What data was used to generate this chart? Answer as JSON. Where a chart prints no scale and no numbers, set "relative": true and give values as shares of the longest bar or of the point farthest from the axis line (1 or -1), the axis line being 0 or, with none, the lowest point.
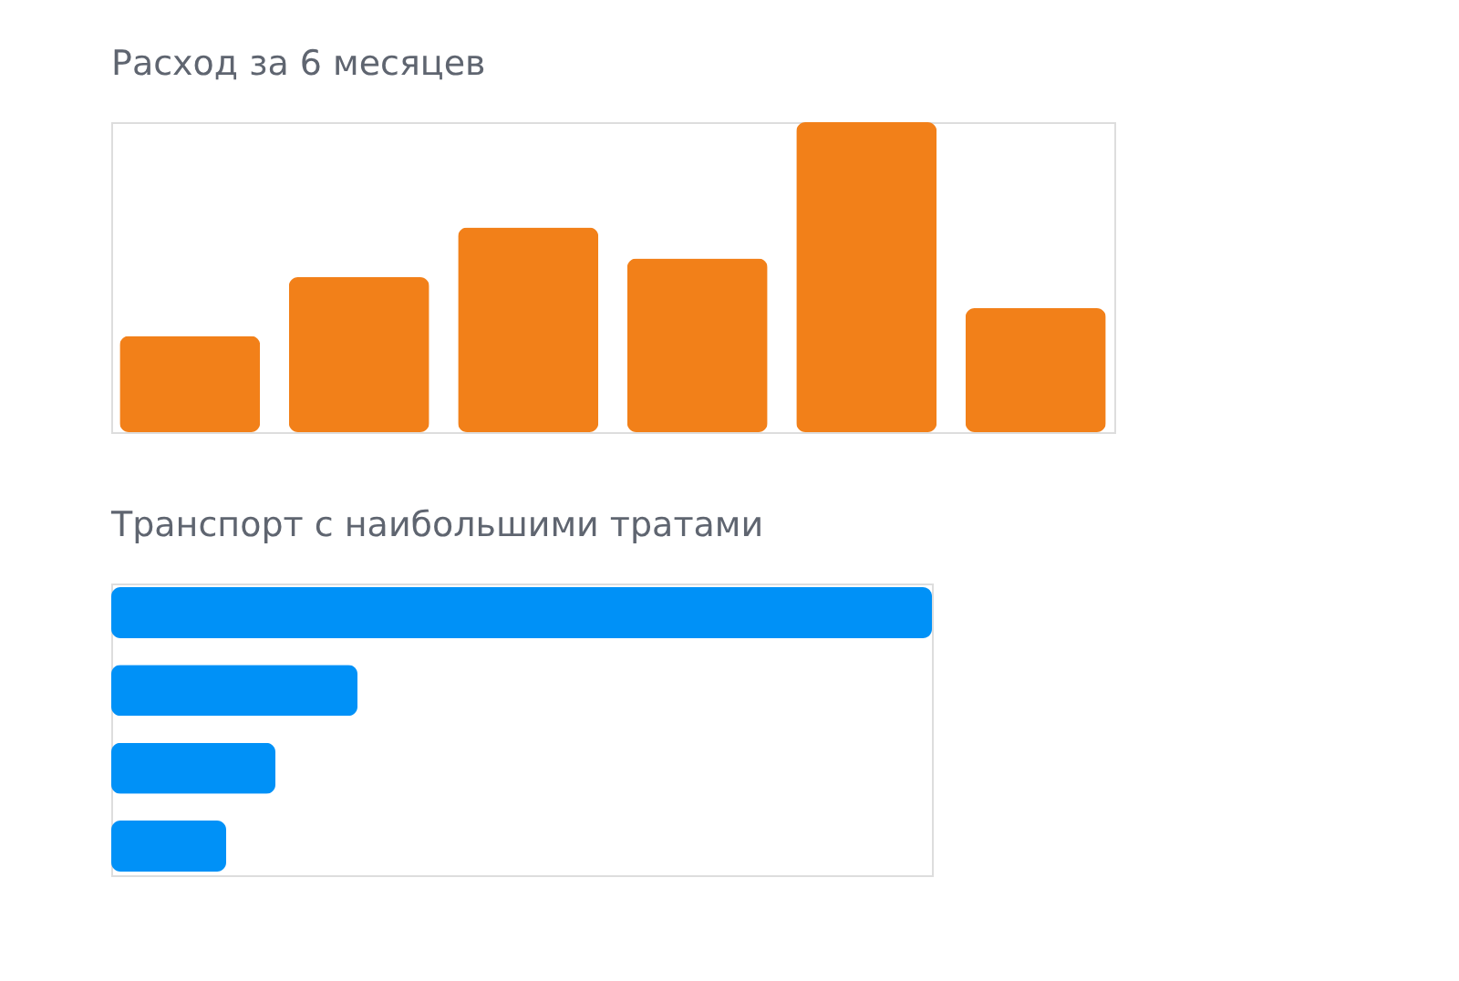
{
  "chart_data": [
    {
      "type": "bar",
      "title": "Расход за 6 месяцев",
      "categories": [
        null,
        null,
        null,
        null,
        null,
        null
      ],
      "values": [
        0.31,
        0.5,
        0.66,
        0.56,
        1,
        0.4
      ],
      "color": "#f28019",
      "relative": true
    },
    {
      "type": "bar",
      "title": "Транспорт с наибольшими тратами",
      "orientation": "horizontal",
      "categories": [
        null,
        null,
        null,
        null
      ],
      "values": [
        1,
        0.3,
        0.2,
        0.14
      ],
      "color": "#0091f7",
      "relative": true
    }
  ]
}
